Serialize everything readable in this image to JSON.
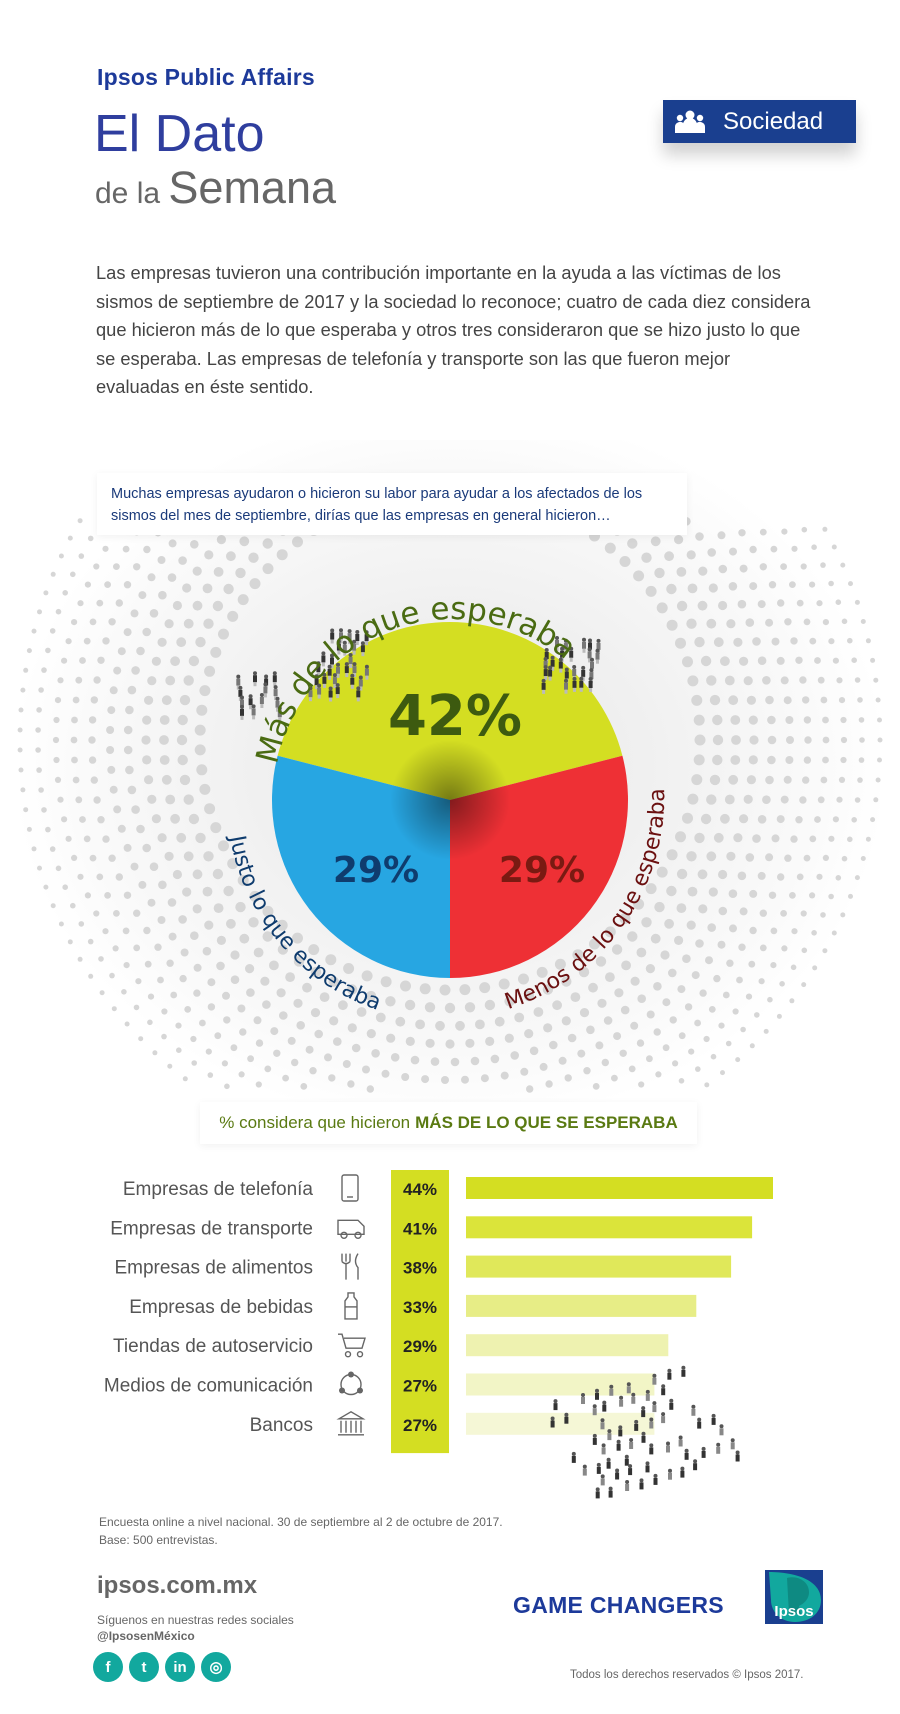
{
  "header": {
    "brand": "Ipsos Public Affairs",
    "title_line1": "El Dato",
    "title_line2_small": "de la",
    "title_line2_big": "Semana",
    "section_badge": "Sociedad",
    "section_icon": "people-group-icon"
  },
  "intro": "Las empresas tuvieron una contribución importante en la ayuda a las víctimas de los sismos de septiembre de 2017 y la sociedad lo reconoce; cuatro de cada diez considera que hicieron más de lo que esperaba y otros tres consideraron que se hizo justo lo que se esperaba.  Las empresas de telefonía y transporte son las que fueron mejor evaluadas en éste sentido.",
  "colors": {
    "yellow": "#d4de22",
    "red": "#ee3035",
    "blue": "#27a6e2",
    "navy": "#1a3f8f",
    "teal": "#12a89e"
  },
  "chart_data": [
    {
      "type": "pie",
      "question": "Muchas empresas ayudaron o hicieron su labor para ayudar a los afectados de los sismos del mes de septiembre, dirías que las empresas en general hicieron…",
      "slices": [
        {
          "label": "Más de lo que esperaba",
          "value": 42,
          "display": "42%",
          "color": "#d4de22"
        },
        {
          "label": "Menos de lo que esperaba",
          "value": 29,
          "display": "29%",
          "color": "#ee3035"
        },
        {
          "label": "Justo lo que esperaba",
          "value": 29,
          "display": "29%",
          "color": "#27a6e2"
        }
      ]
    },
    {
      "type": "bar",
      "title_regular": "% considera que hicieron",
      "title_bold": "MÁS DE LO QUE SE ESPERABA",
      "categories": [
        "Empresas de telefonía",
        "Empresas de transporte",
        "Empresas de alimentos",
        "Empresas de bebidas",
        "Tiendas de autoservicio",
        "Medios de comunicación",
        "Bancos"
      ],
      "icons": [
        "phone-icon",
        "van-icon",
        "cutlery-icon",
        "bottle-icon",
        "cart-icon",
        "network-icon",
        "bank-icon"
      ],
      "values": [
        44,
        41,
        38,
        33,
        29,
        27,
        27
      ],
      "display": [
        "44%",
        "41%",
        "38%",
        "33%",
        "29%",
        "27%",
        "27%"
      ],
      "xlim": [
        0,
        44
      ]
    }
  ],
  "footer": {
    "source_line1": "Encuesta online a nivel nacional. 30 de septiembre al 2 de octubre de 2017.",
    "source_line2": "Base: 500 entrevistas.",
    "site": "ipsos.com.mx",
    "follow": "Síguenos en nuestras redes sociales",
    "handle": "@IpsosenMéxico",
    "social": [
      {
        "name": "facebook-icon",
        "glyph": "f"
      },
      {
        "name": "twitter-icon",
        "glyph": "t"
      },
      {
        "name": "linkedin-icon",
        "glyph": "in"
      },
      {
        "name": "instagram-icon",
        "glyph": "◎"
      }
    ],
    "tagline": "GAME CHANGERS",
    "logo_text": "Ipsos",
    "copyright": "Todos los derechos reservados © Ipsos 2017."
  }
}
